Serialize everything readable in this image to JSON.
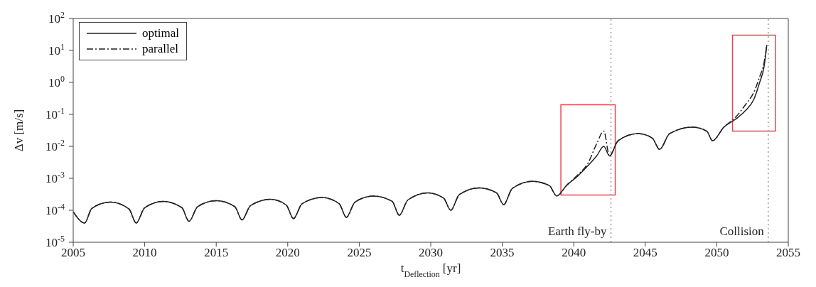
{
  "chart_data": {
    "type": "line",
    "xlabel": "t$_{Deflection}$ [yr]",
    "ylabel": "Δv [m/s]",
    "x": [
      2005,
      2005.8,
      2006.3,
      2007.6,
      2008.9,
      2009.4,
      2010,
      2011.3,
      2012.6,
      2013.1,
      2013.7,
      2015,
      2016.3,
      2016.8,
      2017.4,
      2018.8,
      2019.9,
      2020.4,
      2021,
      2022.4,
      2023.6,
      2024.1,
      2024.7,
      2026,
      2027.3,
      2027.8,
      2028.4,
      2029.8,
      2030.9,
      2031.4,
      2032,
      2033.4,
      2034.6,
      2035.1,
      2035.7,
      2037.1,
      2038.3,
      2038.8,
      2039.5,
      2040.3,
      2041,
      2041.6,
      2042.1,
      2042.5,
      2043.1,
      2044.5,
      2045.5,
      2046,
      2046.7,
      2048.3,
      2049.3,
      2049.7,
      2050.5,
      2051.3,
      2052,
      2052.6,
      2053,
      2053.3,
      2053.5
    ],
    "series": [
      {
        "name": "optimal",
        "color": "#222222",
        "line_style": "solid",
        "values": [
          9e-05,
          4e-05,
          0.000115,
          0.00018,
          0.00011,
          4e-05,
          0.00012,
          0.00019,
          0.00012,
          4.5e-05,
          0.00013,
          0.0002,
          0.00013,
          5e-05,
          0.00014,
          0.00022,
          0.000145,
          5.5e-05,
          0.00016,
          0.00025,
          0.00016,
          6e-05,
          0.00018,
          0.00028,
          0.00019,
          7e-05,
          0.00021,
          0.00035,
          0.00024,
          0.0001,
          0.00031,
          0.0005,
          0.00035,
          0.00015,
          0.00048,
          0.0008,
          0.00059,
          0.00028,
          0.0006,
          0.0012,
          0.0025,
          0.005,
          0.01,
          0.005,
          0.015,
          0.025,
          0.018,
          0.008,
          0.025,
          0.04,
          0.03,
          0.015,
          0.04,
          0.07,
          0.13,
          0.3,
          1,
          3,
          15
        ]
      },
      {
        "name": "parallel",
        "color": "#222222",
        "line_style": "dashed",
        "values": [
          9e-05,
          4e-05,
          0.000115,
          0.00018,
          0.00011,
          4e-05,
          0.00012,
          0.00019,
          0.00012,
          4.5e-05,
          0.00013,
          0.0002,
          0.00013,
          5e-05,
          0.00014,
          0.00022,
          0.000145,
          5.5e-05,
          0.00016,
          0.00025,
          0.00016,
          6e-05,
          0.00018,
          0.00028,
          0.00019,
          7e-05,
          0.00021,
          0.00035,
          0.00024,
          0.0001,
          0.00031,
          0.0005,
          0.00035,
          0.00015,
          0.00048,
          0.0008,
          0.00059,
          0.00028,
          0.0006,
          0.0013,
          0.003,
          0.012,
          0.03,
          0.005,
          0.015,
          0.025,
          0.018,
          0.008,
          0.025,
          0.04,
          0.03,
          0.015,
          0.04,
          0.08,
          0.2,
          0.5,
          1.5,
          4,
          15
        ]
      }
    ],
    "log": "y",
    "xlim": [
      2005,
      2055
    ],
    "xticks": [
      2005,
      2010,
      2015,
      2020,
      2025,
      2030,
      2035,
      2040,
      2045,
      2050,
      2055
    ],
    "ylim": [
      1e-05,
      100
    ],
    "yticks": [
      {
        "value": 1e-05,
        "label": "10$^{-5}$"
      },
      {
        "value": 0.0001,
        "label": "10$^{-4}$"
      },
      {
        "value": 0.001,
        "label": "10$^{-3}$"
      },
      {
        "value": 0.01,
        "label": "10$^{-2}$"
      },
      {
        "value": 0.1,
        "label": "10$^{-1}$"
      },
      {
        "value": 1,
        "label": "10$^{0}$"
      },
      {
        "value": 10,
        "label": "10$^{1}$"
      },
      {
        "value": 100,
        "label": "10$^{2}$"
      }
    ],
    "ref_lines": [
      {
        "axis": "x",
        "value": 2042.6,
        "label": "Earth fly-by",
        "color": "#999999",
        "line_style": "dotted"
      },
      {
        "axis": "x",
        "value": 2053.6,
        "label": "Collision",
        "color": "#999999",
        "line_style": "dotted"
      }
    ],
    "grid": false,
    "legend": "top left",
    "marker": "none"
  }
}
